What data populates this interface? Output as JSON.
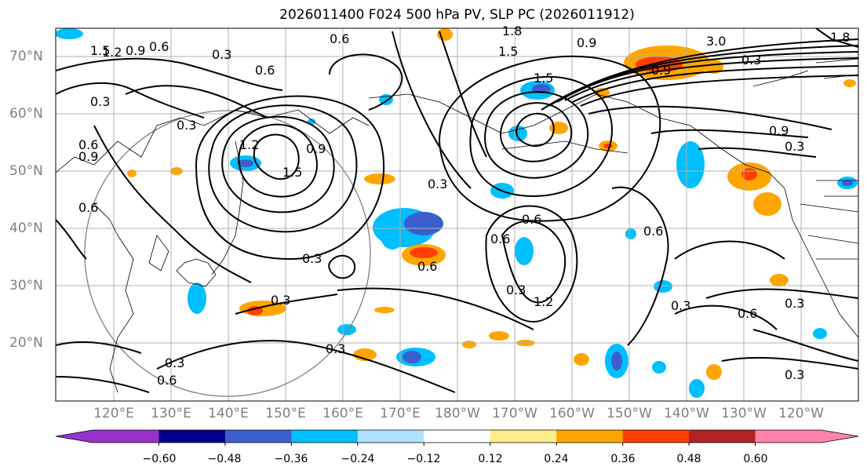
{
  "title": "2026011400 F024 500 hPa PV, SLP PC (2026011912)",
  "lon_labels": [
    "120°E",
    "130°E",
    "140°E",
    "150°E",
    "160°E",
    "170°E",
    "180°W",
    "170°W",
    "160°W",
    "150°W",
    "140°W",
    "130°W",
    "120°W"
  ],
  "lat_labels": [
    "70°N",
    "60°N",
    "50°N",
    "40°N",
    "30°N",
    "20°N"
  ],
  "colorbar": {
    "ticks": [
      "−0.60",
      "−0.48",
      "−0.36",
      "−0.24",
      "−0.12",
      "0.12",
      "0.24",
      "0.36",
      "0.48",
      "0.60"
    ],
    "colors": [
      "#9932cc",
      "#00008b",
      "#3a5fcd",
      "#00bfff",
      "#b0e2ff",
      "#ffffff",
      "#ffec8b",
      "#ffa500",
      "#ff4000",
      "#b22222",
      "#ff82ab"
    ]
  },
  "contour_labels": [
    "1.5",
    "1.8",
    "1.2",
    "0.9",
    "0.6",
    "0.6",
    "0.3",
    "0.6",
    "1.5",
    "1.2",
    "0.9",
    "0.9",
    "0.3",
    "0.3",
    "1.5",
    "0.3",
    "0.6",
    "0.6",
    "0.9",
    "0.6",
    "0.3",
    "0.6",
    "1.2",
    "0.6",
    "0.3",
    "0.6",
    "0.3",
    "0.3",
    "0.6",
    "0.3",
    "0.3",
    "0.3",
    "0.6",
    "0.3",
    "0.9",
    "1.5",
    "3.0",
    "1.8",
    "0.3",
    "0.9",
    "0.3"
  ]
}
